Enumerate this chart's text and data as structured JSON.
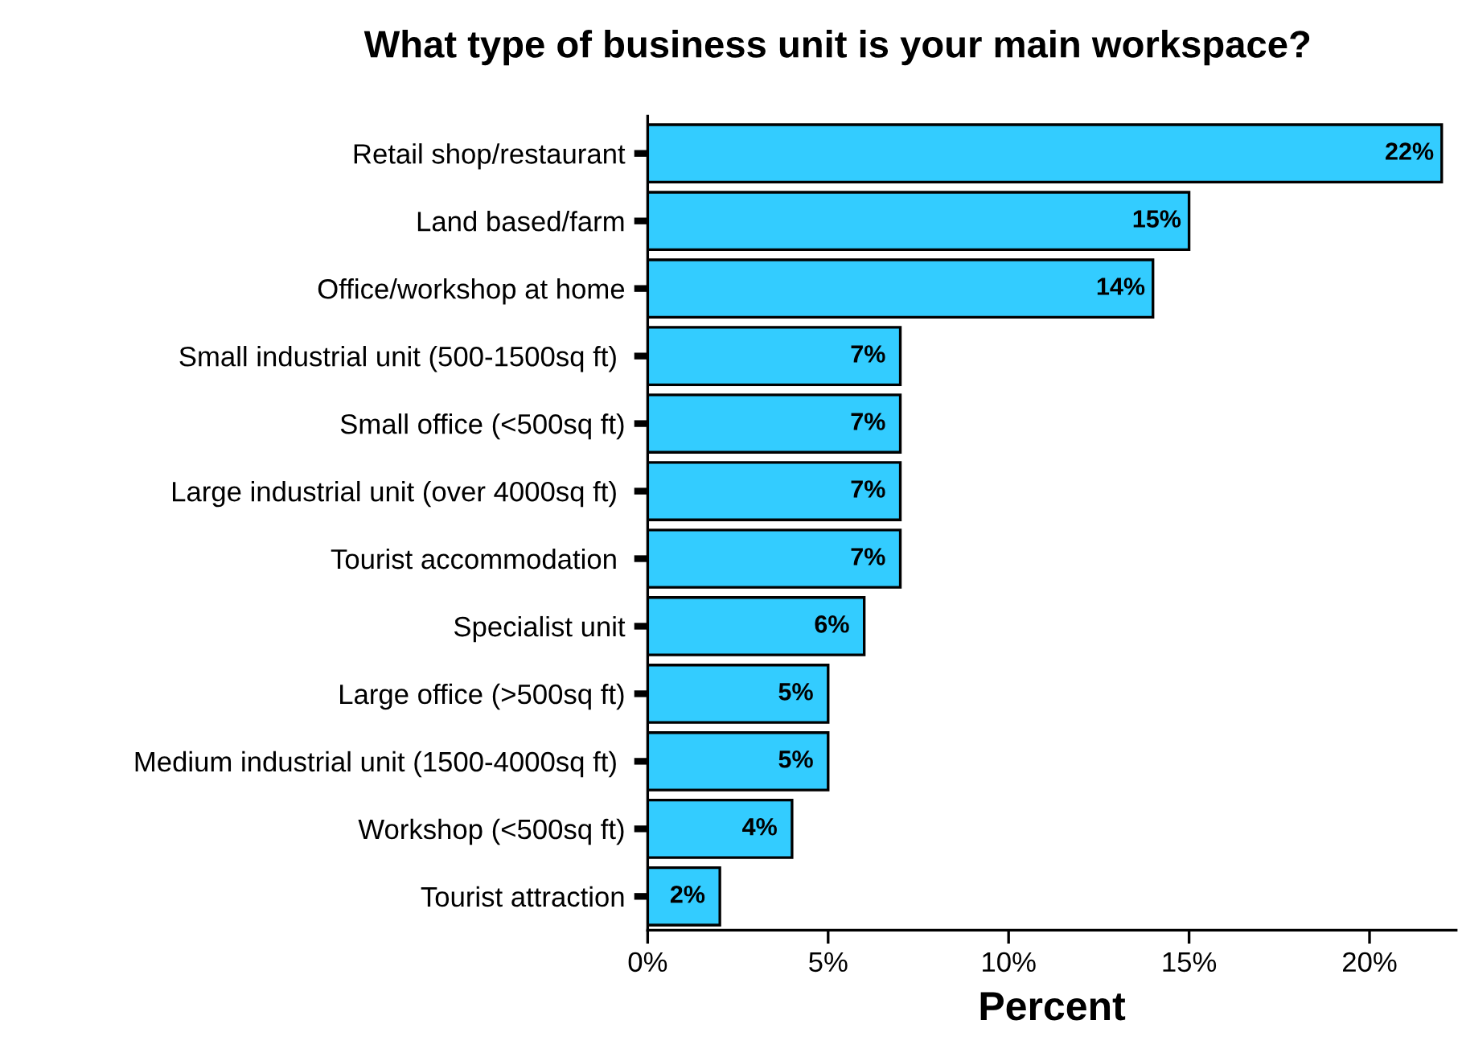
{
  "chart_data": {
    "type": "bar",
    "orientation": "horizontal",
    "title": "What type of business unit is your main workspace?",
    "xlabel": "Percent",
    "categories": [
      "Retail shop/restaurant",
      "Land based/farm",
      "Office/workshop at home",
      "Small industrial unit (500-1500sq ft) ",
      "Small office (<500sq ft)",
      "Large industrial unit (over 4000sq ft) ",
      "Tourist accommodation ",
      "Specialist unit",
      "Large office (>500sq ft)",
      "Medium industrial unit (1500-4000sq ft) ",
      "Workshop (<500sq ft)",
      "Tourist attraction"
    ],
    "values": [
      22,
      15,
      14,
      7,
      7,
      7,
      7,
      6,
      5,
      5,
      4,
      2
    ],
    "value_labels": [
      "22%",
      "15%",
      "14%",
      "7%",
      "7%",
      "7%",
      "7%",
      "6%",
      "5%",
      "5%",
      "4%",
      "2%"
    ],
    "color": "#33ccff",
    "xlim": [
      0,
      22.4
    ],
    "xticks": [
      {
        "value": 0,
        "label": "0%"
      },
      {
        "value": 5,
        "label": "5%"
      },
      {
        "value": 10,
        "label": "10%"
      },
      {
        "value": 15,
        "label": "15%"
      },
      {
        "value": 20,
        "label": "20%"
      }
    ],
    "grid": false,
    "legend": false
  }
}
